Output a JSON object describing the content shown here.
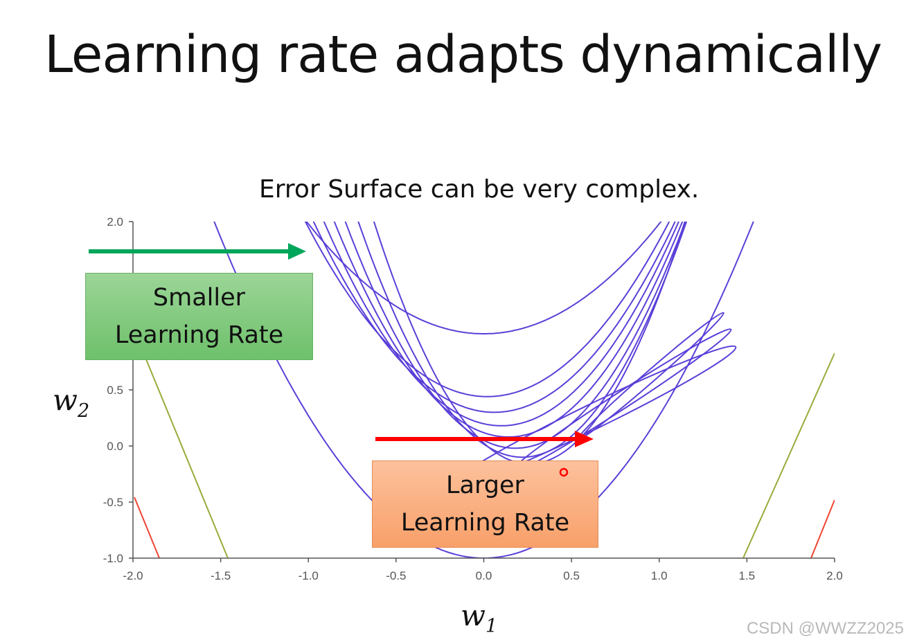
{
  "title": "Learning rate adapts dynamically",
  "subtitle": "Error Surface can be very complex.",
  "callouts": {
    "smaller": {
      "line1": "Smaller",
      "line2": "Learning Rate"
    },
    "larger": {
      "line1": "Larger",
      "line2": "Learning Rate"
    }
  },
  "watermark": "CSDN @WWZZ2025",
  "colors": {
    "contour": "#5b3fd8",
    "smaller_arrow": "#00a65a",
    "larger_arrow": "#ff0000",
    "side_line_green": "#9aaa3a",
    "side_line_red": "#ee4433"
  },
  "chart_data": {
    "type": "contour",
    "xlabel": "w",
    "xlabel_sub": "1",
    "ylabel": "w",
    "ylabel_sub": "2",
    "xlim": [
      -2.0,
      2.0
    ],
    "ylim": [
      -1.0,
      2.0
    ],
    "x_ticks": [
      "-2.0",
      "-1.5",
      "-1.0",
      "-0.5",
      "0.0",
      "0.5",
      "1.0",
      "1.5",
      "2.0"
    ],
    "y_ticks": [
      "-1.0",
      "-0.5",
      "0.0",
      "0.5",
      "2.0"
    ],
    "y_tick_values": [
      -1.0,
      -0.5,
      0.0,
      0.5,
      2.0
    ],
    "x_tick_values": [
      -2.0,
      -1.5,
      -1.0,
      -0.5,
      0.0,
      0.5,
      1.0,
      1.5,
      2.0
    ]
  }
}
